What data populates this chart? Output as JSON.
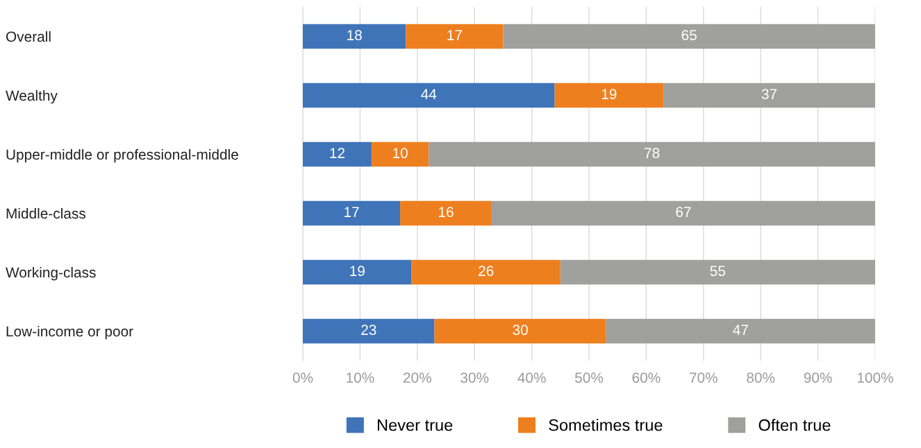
{
  "chart_data": {
    "type": "bar",
    "orientation": "horizontal",
    "stacked": true,
    "categories": [
      "Overall",
      "Wealthy",
      "Upper-middle or professional-middle",
      "Middle-class",
      "Working-class",
      "Low-income or poor"
    ],
    "series": [
      {
        "name": "Never true",
        "color": "#3f74b9",
        "values": [
          18,
          44,
          12,
          17,
          19,
          23
        ]
      },
      {
        "name": "Sometimes true",
        "color": "#ee7f1f",
        "values": [
          17,
          19,
          10,
          16,
          26,
          30
        ]
      },
      {
        "name": "Often true",
        "color": "#a0a09f",
        "values": [
          65,
          37,
          78,
          67,
          55,
          47
        ]
      }
    ],
    "xlim": [
      0,
      100
    ],
    "xticks": [
      {
        "value": 0,
        "label": "0%"
      },
      {
        "value": 10,
        "label": "10%"
      },
      {
        "value": 20,
        "label": "20%"
      },
      {
        "value": 30,
        "label": "30%"
      },
      {
        "value": 40,
        "label": "40%"
      },
      {
        "value": 50,
        "label": "50%"
      },
      {
        "value": 60,
        "label": "60%"
      },
      {
        "value": 70,
        "label": "70%"
      },
      {
        "value": 80,
        "label": "80%"
      },
      {
        "value": 90,
        "label": "90%"
      },
      {
        "value": 100,
        "label": "100%"
      }
    ],
    "grid": "x",
    "legend": "bottom",
    "data_labels": true
  }
}
